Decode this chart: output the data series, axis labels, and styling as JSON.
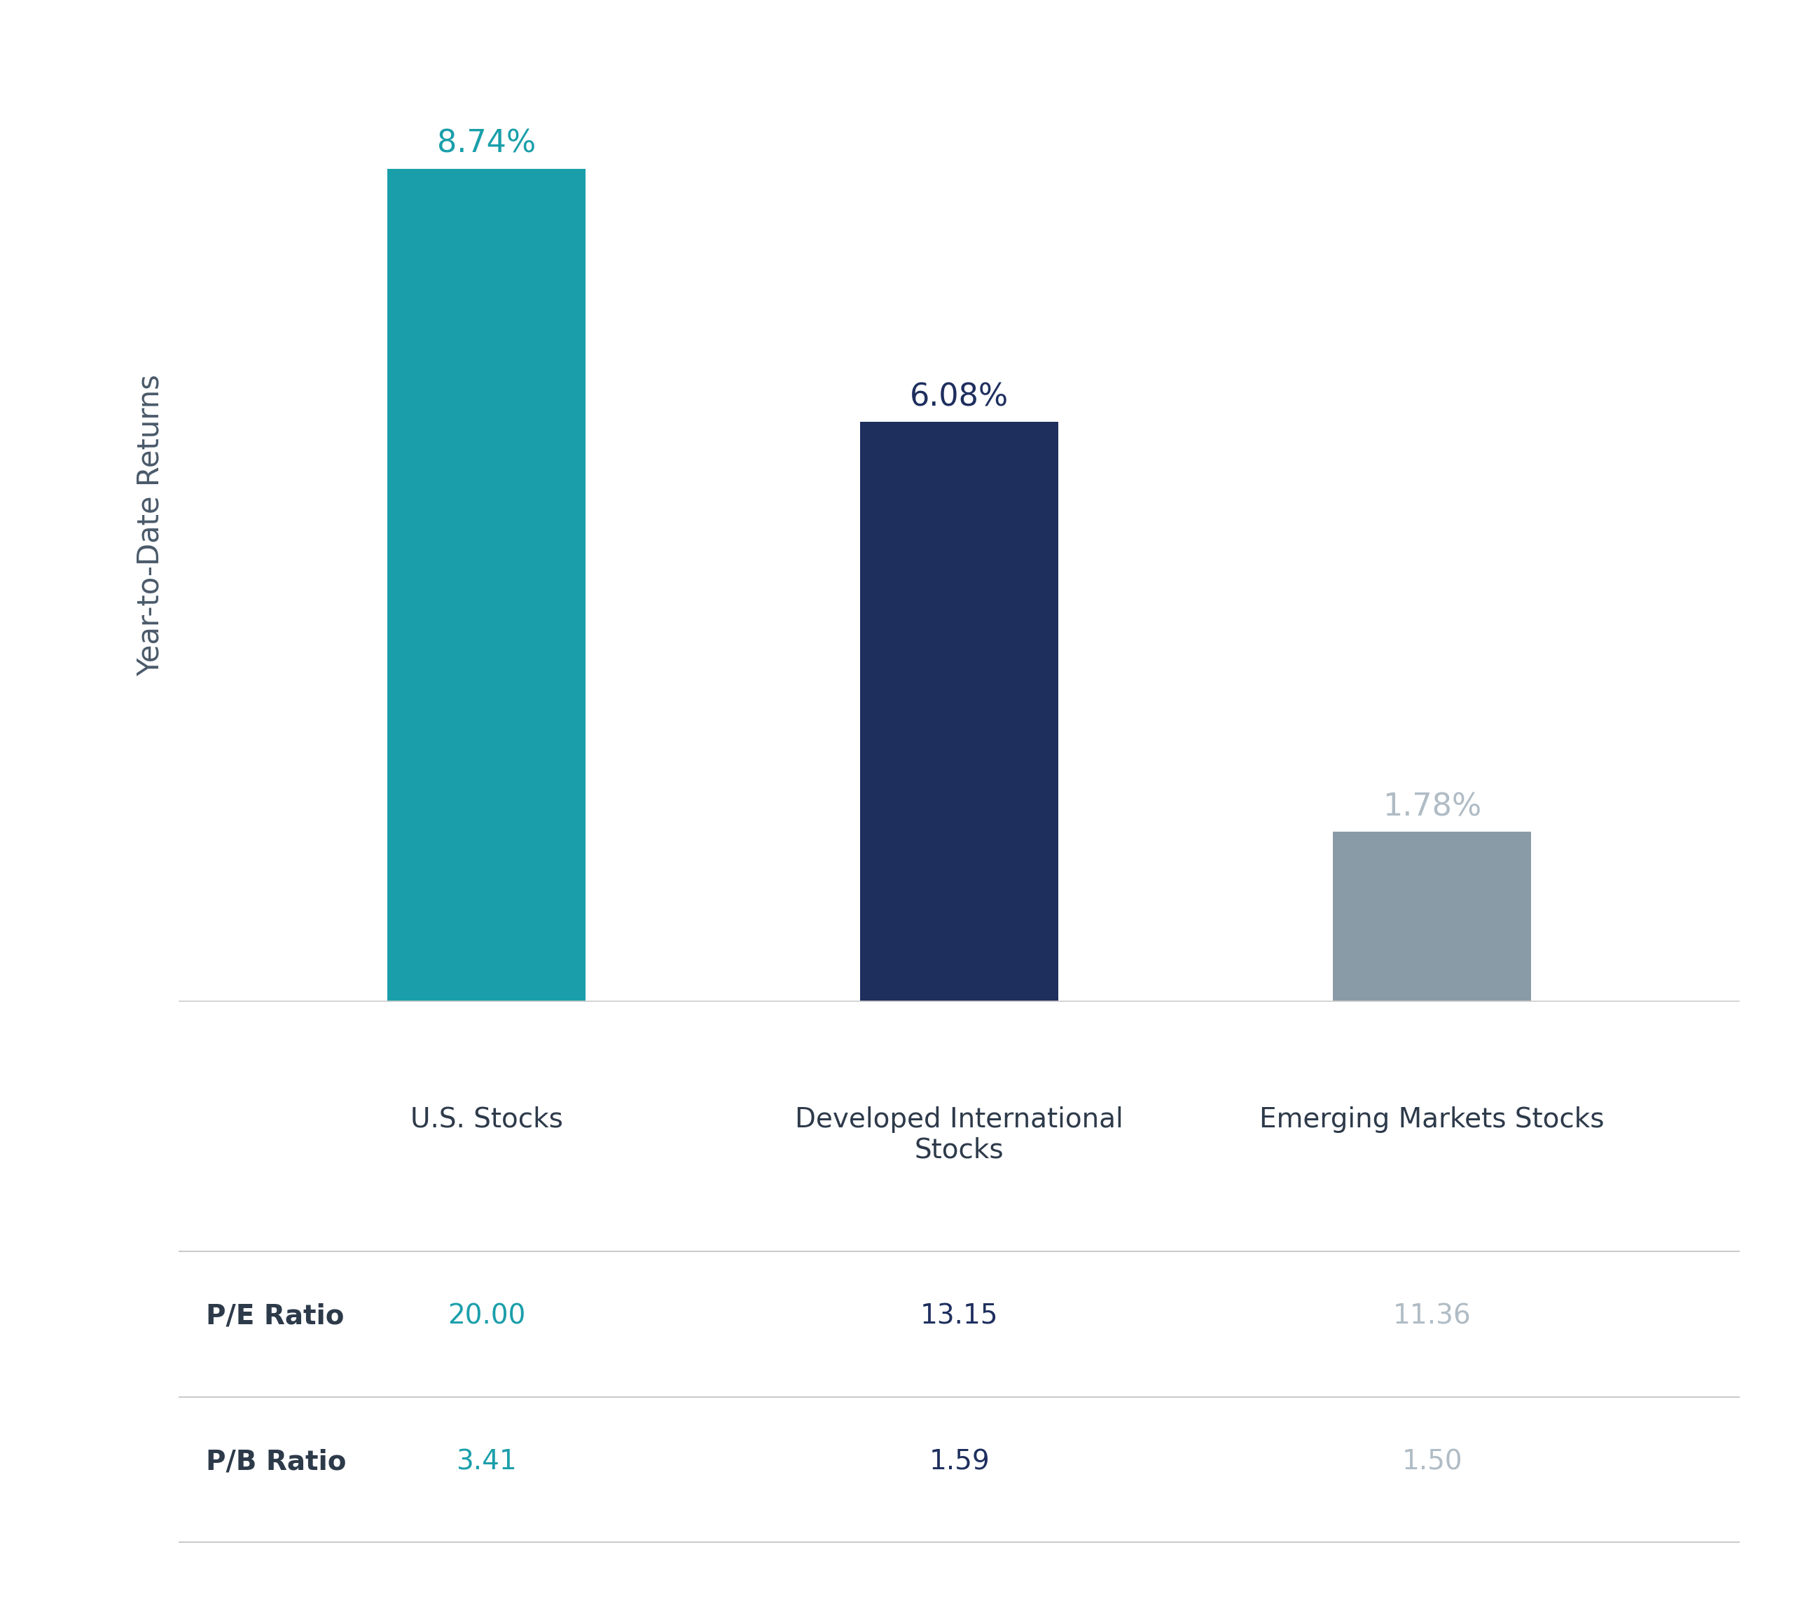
{
  "categories": [
    "U.S. Stocks",
    "Developed International\nStocks",
    "Emerging Markets Stocks"
  ],
  "values": [
    8.74,
    6.08,
    1.78
  ],
  "value_labels": [
    "8.74%",
    "6.08%",
    "1.78%"
  ],
  "bar_colors": [
    "#1a9faa",
    "#1e2f5e",
    "#8a9ba8"
  ],
  "value_label_colors": [
    "#1a9faa",
    "#1e2f5e",
    "#b0bcc5"
  ],
  "ylabel": "Year-to-Date Returns",
  "ylim": [
    0,
    10
  ],
  "background_color": "#ffffff",
  "table_rows": [
    "P/E Ratio",
    "P/B Ratio"
  ],
  "table_data": [
    [
      "20.00",
      "13.15",
      "11.36"
    ],
    [
      "3.41",
      "1.59",
      "1.50"
    ]
  ],
  "table_col0_color": "#1a9faa",
  "table_col1_color": "#1e2f5e",
  "table_col2_color": "#b0bcc5",
  "table_label_color": "#2d3a4a",
  "value_fontsize": 32,
  "ylabel_fontsize": 30,
  "table_fontsize": 28,
  "xtick_fontsize": 28,
  "bar_width": 0.42,
  "line_color": "#cccccc"
}
